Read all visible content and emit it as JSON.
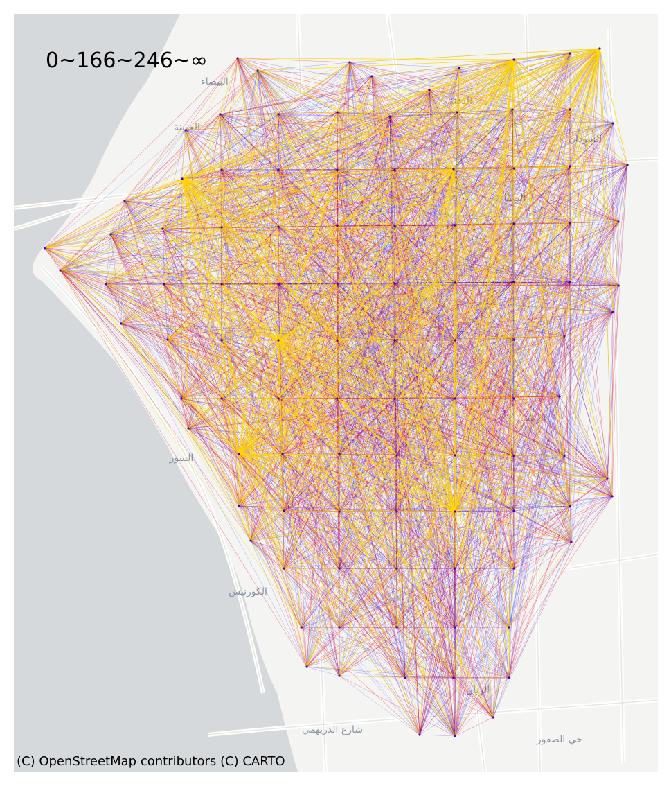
{
  "map": {
    "legend_text": "0~166~246~∞",
    "attribution": "(C) OpenStreetMap contributors (C) CARTO",
    "basemap_labels": [
      "البيضاء",
      "العوينة",
      "الدفنة",
      "الصفاء",
      "السور",
      "الكورنيش",
      "الوعب",
      "شارع الدريهمي",
      "حي الصقور",
      "السودان",
      "الريان"
    ],
    "colors": {
      "water": "#d5d9dc",
      "land": "#f4f4f2",
      "road": "#ffffff",
      "low_flow": "#0000ff",
      "mid_flow": "#e8002a",
      "high_flow": "#ffd700"
    },
    "legend_class_breaks": [
      0,
      166,
      246
    ]
  }
}
